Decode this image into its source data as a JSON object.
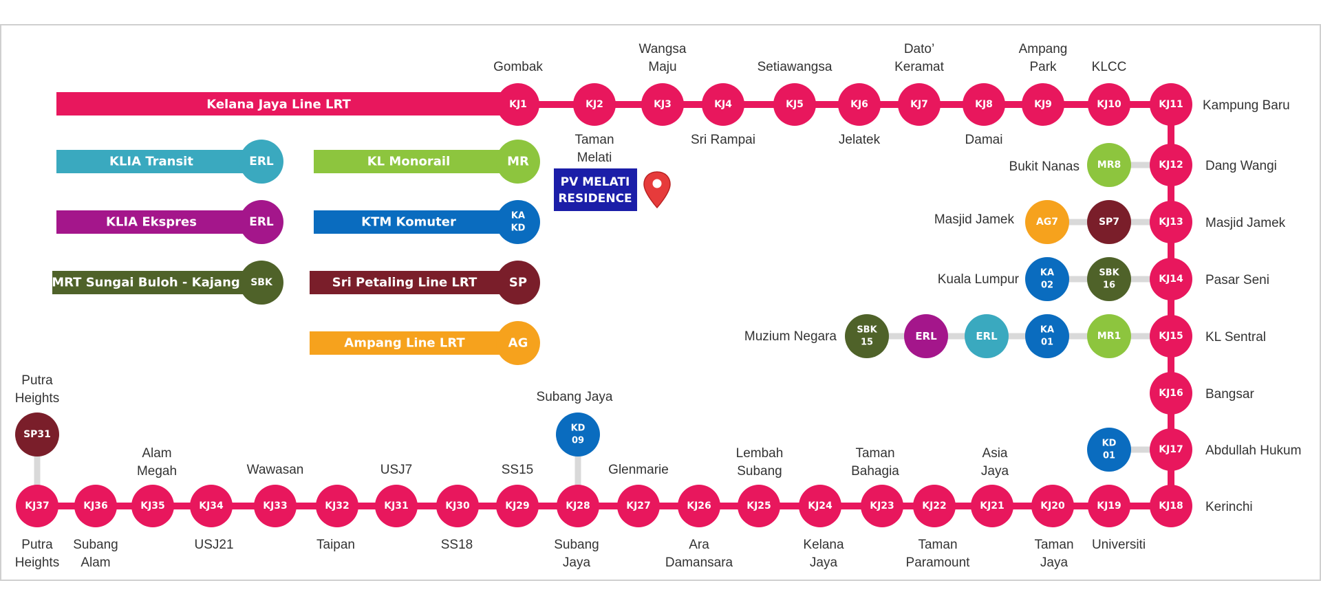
{
  "colors": {
    "kelana": "#e8175d",
    "klia_transit": "#3aa9bf",
    "klia_ekspres": "#a4168b",
    "mrt_sbk": "#4f6229",
    "monorail": "#8dc53e",
    "ktm": "#0a6cbf",
    "sri_petaling": "#7a1e2a",
    "ampang": "#f6a21d",
    "marker_box": "#1b1ea8",
    "pin": "#e63b3b"
  },
  "legend": {
    "kelana": "Kelana Jaya Line LRT",
    "klia_transit": {
      "label": "KLIA Transit",
      "code": "ERL"
    },
    "klia_ekspres": {
      "label": "KLIA Ekspres",
      "code": "ERL"
    },
    "mrt": {
      "label": "MRT Sungai Buloh - Kajang",
      "code": "SBK"
    },
    "monorail": {
      "label": "KL Monorail",
      "code": "MR"
    },
    "ktm": {
      "label": "KTM Komuter",
      "code": [
        "KA",
        "KD"
      ]
    },
    "sri_petaling": {
      "label": "Sri Petaling Line LRT",
      "code": "SP"
    },
    "ampang": {
      "label": "Ampang Line LRT",
      "code": "AG"
    }
  },
  "marker": {
    "lines": [
      "PV MELATI",
      "RESIDENCE"
    ],
    "icon": "location-pin-icon"
  },
  "kj_stations": [
    {
      "code": "KJ1",
      "name": "Gombak"
    },
    {
      "code": "KJ2",
      "name": "Taman Melati"
    },
    {
      "code": "KJ3",
      "name": "Wangsa Maju"
    },
    {
      "code": "KJ4",
      "name": "Sri Rampai"
    },
    {
      "code": "KJ5",
      "name": "Setiawangsa"
    },
    {
      "code": "KJ6",
      "name": "Jelatek"
    },
    {
      "code": "KJ7",
      "name": "Dato’ Keramat"
    },
    {
      "code": "KJ8",
      "name": "Damai"
    },
    {
      "code": "KJ9",
      "name": "Ampang Park"
    },
    {
      "code": "KJ10",
      "name": "KLCC"
    },
    {
      "code": "KJ11",
      "name": "Kampung Baru"
    },
    {
      "code": "KJ12",
      "name": "Dang Wangi"
    },
    {
      "code": "KJ13",
      "name": "Masjid Jamek"
    },
    {
      "code": "KJ14",
      "name": "Pasar Seni"
    },
    {
      "code": "KJ15",
      "name": "KL Sentral"
    },
    {
      "code": "KJ16",
      "name": "Bangsar"
    },
    {
      "code": "KJ17",
      "name": "Abdullah Hukum"
    },
    {
      "code": "KJ18",
      "name": "Kerinchi"
    },
    {
      "code": "KJ19",
      "name": "Universiti"
    },
    {
      "code": "KJ20",
      "name": "Taman Jaya"
    },
    {
      "code": "KJ21",
      "name": "Asia Jaya"
    },
    {
      "code": "KJ22",
      "name": "Taman Paramount"
    },
    {
      "code": "KJ23",
      "name": "Taman Bahagia"
    },
    {
      "code": "KJ24",
      "name": "Kelana Jaya"
    },
    {
      "code": "KJ25",
      "name": "Lembah Subang"
    },
    {
      "code": "KJ26",
      "name": "Ara Damansara"
    },
    {
      "code": "KJ27",
      "name": "Glenmarie"
    },
    {
      "code": "KJ28",
      "name": "Subang Jaya"
    },
    {
      "code": "KJ29",
      "name": "SS15"
    },
    {
      "code": "KJ30",
      "name": "SS18"
    },
    {
      "code": "KJ31",
      "name": "USJ7"
    },
    {
      "code": "KJ32",
      "name": "Taipan"
    },
    {
      "code": "KJ33",
      "name": "Wawasan"
    },
    {
      "code": "KJ34",
      "name": "USJ21"
    },
    {
      "code": "KJ35",
      "name": "Alam Megah"
    },
    {
      "code": "KJ36",
      "name": "Subang Alam"
    },
    {
      "code": "KJ37",
      "name": "Putra Heights"
    }
  ],
  "interchanges": {
    "bukit_nanas": {
      "name": "Bukit Nanas",
      "codes": [
        "MR8"
      ]
    },
    "masjid_jamek": {
      "name": "Masjid Jamek",
      "codes": [
        "AG7",
        "SP7"
      ]
    },
    "kuala_lumpur": {
      "name": "Kuala Lumpur",
      "codes": [
        [
          "KA",
          "02"
        ],
        [
          "SBK",
          "16"
        ]
      ]
    },
    "muzium_negara": {
      "name": "Muzium Negara",
      "codes": [
        [
          "SBK",
          "15"
        ]
      ]
    },
    "kl_sentral": {
      "codes": [
        "ERL",
        "ERL",
        [
          "KA",
          "01"
        ],
        "MR1"
      ]
    },
    "subang_jaya": {
      "name": "Subang Jaya",
      "codes": [
        [
          "KD",
          "09"
        ]
      ]
    },
    "abdullah_hukum": {
      "codes": [
        [
          "KD",
          "01"
        ]
      ]
    },
    "putra_heights": {
      "name": "Putra Heights",
      "codes": [
        "SP31"
      ]
    }
  }
}
